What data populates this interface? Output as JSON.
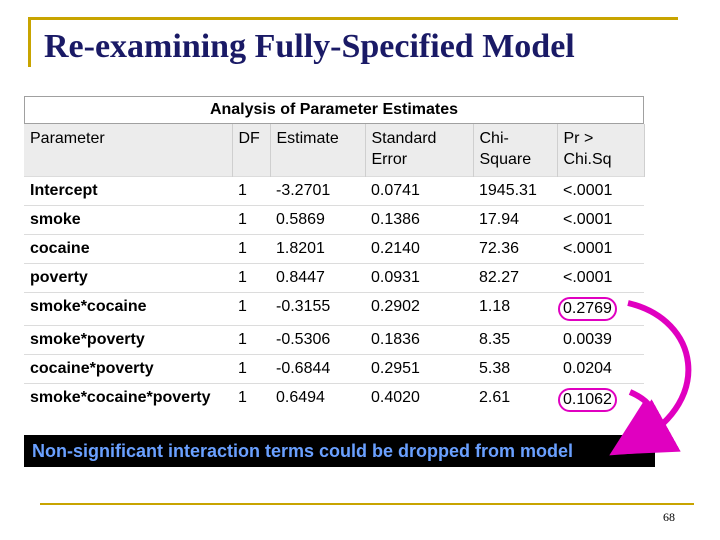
{
  "slide": {
    "title": "Re-examining Fully-Specified Model",
    "page_number": "68"
  },
  "table": {
    "caption": "Analysis of Parameter Estimates",
    "columns": [
      "Parameter",
      "DF",
      "Estimate",
      "Standard Error",
      "Chi-Square",
      "Pr > Chi.Sq"
    ],
    "rows": [
      {
        "parameter": "Intercept",
        "df": "1",
        "estimate": "-3.2701",
        "std_error": "0.0741",
        "chi_square": "1945.31",
        "p": "<.0001"
      },
      {
        "parameter": "smoke",
        "df": "1",
        "estimate": "0.5869",
        "std_error": "0.1386",
        "chi_square": "17.94",
        "p": "<.0001"
      },
      {
        "parameter": "cocaine",
        "df": "1",
        "estimate": "1.8201",
        "std_error": "0.2140",
        "chi_square": "72.36",
        "p": "<.0001"
      },
      {
        "parameter": "poverty",
        "df": "1",
        "estimate": "0.8447",
        "std_error": "0.0931",
        "chi_square": "82.27",
        "p": "<.0001"
      },
      {
        "parameter": "smoke*cocaine",
        "df": "1",
        "estimate": "-0.3155",
        "std_error": "0.2902",
        "chi_square": "1.18",
        "p": "0.2769"
      },
      {
        "parameter": "smoke*poverty",
        "df": "1",
        "estimate": "-0.5306",
        "std_error": "0.1836",
        "chi_square": "8.35",
        "p": "0.0039"
      },
      {
        "parameter": "cocaine*poverty",
        "df": "1",
        "estimate": "-0.6844",
        "std_error": "0.2951",
        "chi_square": "5.38",
        "p": "0.0204"
      },
      {
        "parameter": "smoke*cocaine*poverty",
        "df": "1",
        "estimate": "0.6494",
        "std_error": "0.4020",
        "chi_square": "2.61",
        "p": "0.1062"
      }
    ]
  },
  "banner": {
    "text": "Non-significant interaction terms could be dropped from model"
  },
  "colors": {
    "title": "#1a1a66",
    "frame": "#c8a400",
    "highlight_circle": "#e000c0",
    "arrow": "#e000c0",
    "banner_bg": "#000000",
    "banner_text": "#6aa0ff"
  }
}
